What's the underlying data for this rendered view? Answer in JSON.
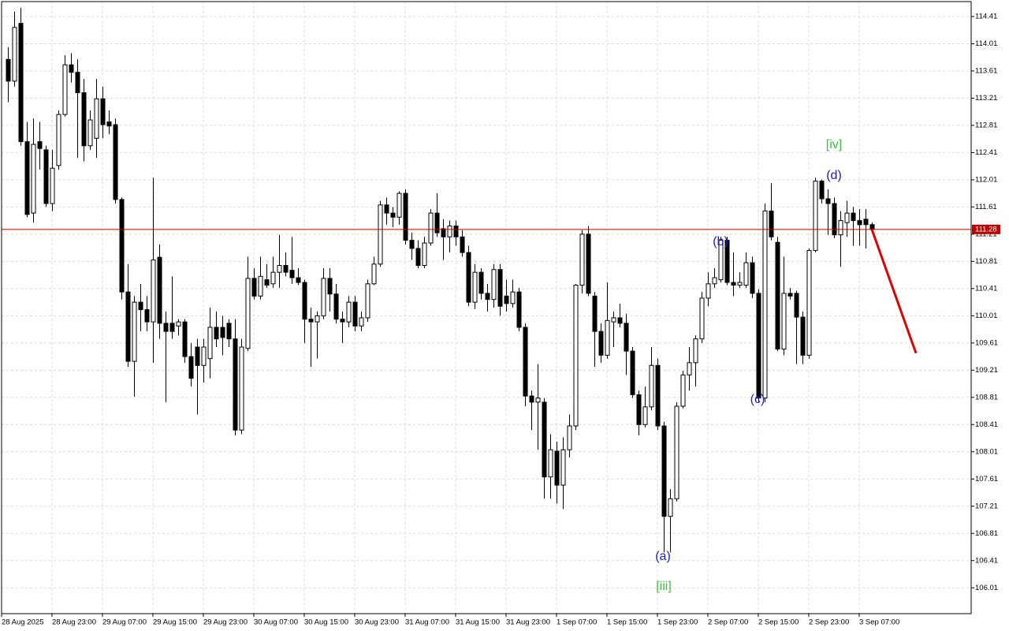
{
  "chart_data": {
    "type": "candlestick",
    "open": [
      113.78,
      113.46,
      114.31,
      112.57,
      111.52,
      112.57,
      112.45,
      111.66,
      112.22,
      112.97,
      113.7,
      113.59,
      113.29,
      112.51,
      112.62,
      113.2,
      112.86,
      112.82,
      111.72,
      110.36,
      109.34,
      110.21,
      110.1,
      109.92,
      110.87,
      109.9,
      109.9,
      109.86,
      109.92,
      109.41,
      109.55,
      109.28,
      109.38,
      109.84,
      109.84,
      109.9,
      109.67,
      108.33,
      109.53,
      110.56,
      110.3,
      110.54,
      110.48,
      110.65,
      110.75,
      110.68,
      110.57,
      110.5,
      109.96,
      109.92,
      110.01,
      110.56,
      110.33,
      109.96,
      109.92,
      110.21,
      109.86,
      109.98,
      110.48,
      110.77,
      111.64,
      111.52,
      111.46,
      111.81,
      111.12,
      111.0,
      110.75,
      111.08,
      111.52,
      111.29,
      111.17,
      111.33,
      111.17,
      110.94,
      110.21,
      110.65,
      110.34,
      110.25,
      110.69,
      110.3,
      110.19,
      110.36,
      109.84,
      108.83,
      108.74,
      108.74,
      107.64,
      108.02,
      107.52,
      108.04,
      108.39,
      110.46,
      111.21,
      110.3,
      109.78,
      109.43,
      109.92,
      109.98,
      109.9,
      109.49,
      108.85,
      108.41,
      108.67,
      109.28,
      108.39,
      107.06,
      107.32,
      108.68,
      109.14,
      109.32,
      109.67,
      110.27,
      110.48,
      110.54,
      111.12,
      110.5,
      110.46,
      110.46,
      110.79,
      110.34,
      108.8,
      111.55,
      111.09,
      109.52,
      110.34,
      110.34,
      109.99,
      109.43,
      110.97,
      111.99,
      111.73,
      111.66,
      111.2,
      111.38,
      111.52,
      111.41,
      111.43,
      111.35
    ],
    "high": [
      113.96,
      114.48,
      114.54,
      112.86,
      112.91,
      112.86,
      112.51,
      112.45,
      113.03,
      113.84,
      113.87,
      113.78,
      113.49,
      113.03,
      113.49,
      113.38,
      113.03,
      112.91,
      111.75,
      110.77,
      110.3,
      110.48,
      110.3,
      112.04,
      111.06,
      110.07,
      110.59,
      109.96,
      109.96,
      109.61,
      109.67,
      109.67,
      110.13,
      110.07,
      110.01,
      109.96,
      109.96,
      109.67,
      110.88,
      110.71,
      110.88,
      110.77,
      110.88,
      111.2,
      110.94,
      111.17,
      110.71,
      110.54,
      110.13,
      110.07,
      110.71,
      110.71,
      110.48,
      110.07,
      110.3,
      110.3,
      110.07,
      110.54,
      110.88,
      111.7,
      111.75,
      111.61,
      111.84,
      111.87,
      111.23,
      111.12,
      111.17,
      111.58,
      111.81,
      111.43,
      111.41,
      111.41,
      111.27,
      111.04,
      110.77,
      110.71,
      110.48,
      110.77,
      110.77,
      110.54,
      110.54,
      110.42,
      109.9,
      108.91,
      109.3,
      108.8,
      108.27,
      108.16,
      108.22,
      108.56,
      110.48,
      111.27,
      111.33,
      110.36,
      109.9,
      110.5,
      110.07,
      110.19,
      110.04,
      109.55,
      108.91,
      108.97,
      109.55,
      109.38,
      108.45,
      107.46,
      108.74,
      109.2,
      109.55,
      109.72,
      110.36,
      110.65,
      110.71,
      111.17,
      111.17,
      110.94,
      110.65,
      110.94,
      110.88,
      110.4,
      111.66,
      111.96,
      111.17,
      110.88,
      110.42,
      110.38,
      110.07,
      111.0,
      112.04,
      112.01,
      111.87,
      111.75,
      111.55,
      111.7,
      111.61,
      111.58,
      111.58,
      111.38
    ],
    "low": [
      113.15,
      113.38,
      112.51,
      111.46,
      111.38,
      112.16,
      111.61,
      111.55,
      112.16,
      112.94,
      113.44,
      112.33,
      112.28,
      112.45,
      112.33,
      112.62,
      112.68,
      111.66,
      110.25,
      109.26,
      108.82,
      109.78,
      109.78,
      109.32,
      109.67,
      108.74,
      109.67,
      109.72,
      109.32,
      108.97,
      108.56,
      109.03,
      109.09,
      109.55,
      109.43,
      109.55,
      108.25,
      108.27,
      109.49,
      110.25,
      110.25,
      110.42,
      110.42,
      110.42,
      110.59,
      110.48,
      110.46,
      109.61,
      109.26,
      109.38,
      109.96,
      110.07,
      109.9,
      109.61,
      109.84,
      109.78,
      109.78,
      109.92,
      110.46,
      110.73,
      111.35,
      111.31,
      111.35,
      111.06,
      110.83,
      110.71,
      110.71,
      111.04,
      111.17,
      110.83,
      110.94,
      111.04,
      110.88,
      110.15,
      110.11,
      110.25,
      110.07,
      110.13,
      110.01,
      110.07,
      110.13,
      109.78,
      108.68,
      108.33,
      108.04,
      107.32,
      107.32,
      107.25,
      107.17,
      107.93,
      108.33,
      110.34,
      110.3,
      109.26,
      109.32,
      109.38,
      109.55,
      109.84,
      109.14,
      108.8,
      108.25,
      108.37,
      108.62,
      108.33,
      106.53,
      106.53,
      107.28,
      108.65,
      108.91,
      108.97,
      109.61,
      110.15,
      110.42,
      110.5,
      110.46,
      110.3,
      110.42,
      110.42,
      110.27,
      108.74,
      108.74,
      111.12,
      109.49,
      109.43,
      110.25,
      109.3,
      109.3,
      109.38,
      110.94,
      111.66,
      111.2,
      111.15,
      110.73,
      111.17,
      111.04,
      111.04,
      111.0,
      111.24
    ],
    "close": [
      113.46,
      114.25,
      112.57,
      111.5,
      112.53,
      112.47,
      111.66,
      112.18,
      112.97,
      113.7,
      113.59,
      113.29,
      112.51,
      112.89,
      113.2,
      112.82,
      112.8,
      111.72,
      110.36,
      109.34,
      110.21,
      110.1,
      109.92,
      110.83,
      109.9,
      109.78,
      109.78,
      109.92,
      109.41,
      109.09,
      109.28,
      109.55,
      109.84,
      109.67,
      109.69,
      109.67,
      108.33,
      109.55,
      110.56,
      110.3,
      110.59,
      110.46,
      110.65,
      110.75,
      110.65,
      110.57,
      110.5,
      109.96,
      109.92,
      110.01,
      110.56,
      110.33,
      109.96,
      109.92,
      110.21,
      109.86,
      109.98,
      110.48,
      110.77,
      111.64,
      111.52,
      111.46,
      111.81,
      111.12,
      111.0,
      110.75,
      111.08,
      111.52,
      111.23,
      111.17,
      111.33,
      111.17,
      110.94,
      110.21,
      110.65,
      110.34,
      110.25,
      110.69,
      110.15,
      110.19,
      110.36,
      109.84,
      108.83,
      108.74,
      108.8,
      107.64,
      108.04,
      107.52,
      108.04,
      108.39,
      110.46,
      111.21,
      110.34,
      109.78,
      109.43,
      109.94,
      109.98,
      109.9,
      109.49,
      108.85,
      108.41,
      108.67,
      109.28,
      108.39,
      107.06,
      107.32,
      108.68,
      109.14,
      109.32,
      109.67,
      110.27,
      110.48,
      110.57,
      111.12,
      110.5,
      110.46,
      110.5,
      110.79,
      110.34,
      108.8,
      111.55,
      111.17,
      109.52,
      110.34,
      110.3,
      109.99,
      109.43,
      110.97,
      111.99,
      111.73,
      111.66,
      111.2,
      111.41,
      111.52,
      111.41,
      111.35,
      111.35,
      111.28
    ],
    "xlim": [
      -1,
      152.75
    ],
    "xticks": [
      {
        "value": -1,
        "label": "28 Aug 2025"
      },
      {
        "value": 7,
        "label": "28 Aug 23:00"
      },
      {
        "value": 15,
        "label": "29 Aug 07:00"
      },
      {
        "value": 23,
        "label": "29 Aug 15:00"
      },
      {
        "value": 31,
        "label": "29 Aug 23:00"
      },
      {
        "value": 39,
        "label": "30 Aug 07:00"
      },
      {
        "value": 47,
        "label": "30 Aug 15:00"
      },
      {
        "value": 55,
        "label": "30 Aug 23:00"
      },
      {
        "value": 63,
        "label": "31 Aug 07:00"
      },
      {
        "value": 71,
        "label": "31 Aug 15:00"
      },
      {
        "value": 79,
        "label": "31 Aug 23:00"
      },
      {
        "value": 87,
        "label": "1 Sep 07:00"
      },
      {
        "value": 95,
        "label": "1 Sep 15:00"
      },
      {
        "value": 103,
        "label": "1 Sep 23:00"
      },
      {
        "value": 111,
        "label": "2 Sep 07:00"
      },
      {
        "value": 119,
        "label": "2 Sep 15:00"
      },
      {
        "value": 127,
        "label": "2 Sep 23:00"
      },
      {
        "value": 135,
        "label": "3 Sep 07:00"
      }
    ],
    "ylim": [
      105.63,
      114.63
    ],
    "yticks": [
      106.01,
      106.41,
      106.81,
      107.21,
      107.61,
      108.01,
      108.41,
      108.81,
      109.21,
      109.61,
      110.01,
      110.41,
      110.81,
      111.21,
      111.61,
      112.01,
      112.41,
      112.81,
      113.21,
      113.61,
      114.01,
      114.41
    ],
    "grid": true,
    "current_price": 111.28,
    "current_price_color": "#c00000",
    "forecast": {
      "x": [
        137,
        144
      ],
      "values": [
        111.28,
        109.46
      ],
      "color": "#e00000"
    },
    "annotations": [
      {
        "text": "[iv]",
        "color": "#3cc43c"
      },
      {
        "text": "(d)",
        "color": "#1c1cd0"
      },
      {
        "text": "(b)",
        "color": "#1c1cd0"
      },
      {
        "text": "(c)",
        "color": "#1c1cd0"
      },
      {
        "text": "(a)",
        "color": "#1c1cd0"
      },
      {
        "text": "[iii]",
        "color": "#3cc43c"
      }
    ]
  }
}
